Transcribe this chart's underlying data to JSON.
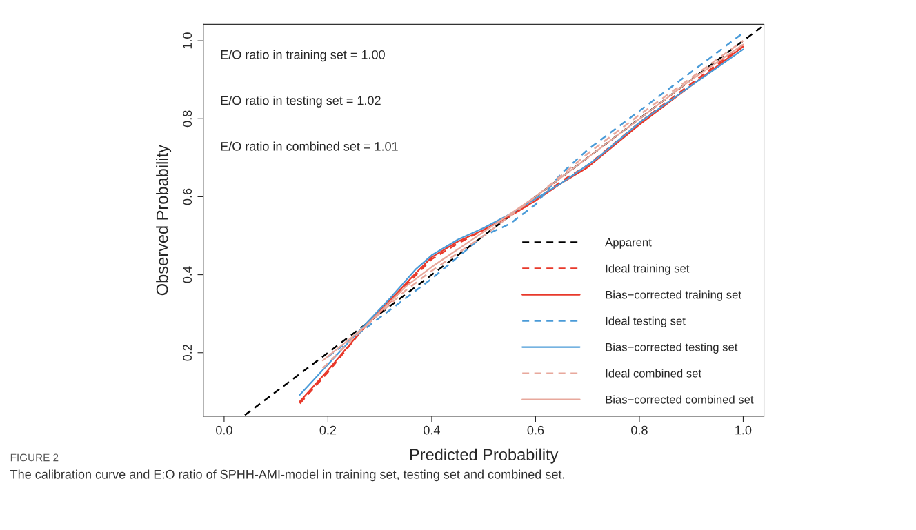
{
  "chart_data": {
    "type": "line",
    "xlabel": "Predicted Probability",
    "ylabel": "Observed Probability",
    "xlim": [
      -0.04,
      1.04
    ],
    "ylim": [
      0.037,
      1.042
    ],
    "xticks": [
      {
        "value": 0,
        "label": "0.0"
      },
      0.2,
      0.4,
      0.6,
      0.8,
      {
        "value": 1,
        "label": "1.0"
      }
    ],
    "yticks": [
      0.2,
      0.4,
      0.6,
      0.8,
      {
        "value": 1,
        "label": "1.0"
      }
    ],
    "grid": false,
    "legend": "bottom right",
    "annotations": [
      "E/O ratio in training set = 1.00",
      "E/O ratio in testing set = 1.02",
      "E/O ratio in combined set = 1.01",
      "FIGURE 2",
      "The calibration curve and E:O ratio of SPHH-AMI-model in training set, testing set and combined set."
    ],
    "series": [
      {
        "name": "Apparent",
        "color": "#000000",
        "line_style": "dashed",
        "x": [
          0.04,
          0.5,
          1.04
        ],
        "values": [
          0.04,
          0.5,
          1.04
        ]
      },
      {
        "name": "Ideal training set",
        "color": "#e8392b",
        "line_style": "dashed",
        "x": [
          0.146,
          0.2,
          0.27,
          0.32,
          0.37,
          0.4,
          0.45,
          0.5,
          0.55,
          0.6,
          0.65,
          0.7,
          0.8,
          0.9,
          1.0
        ],
        "values": [
          0.07,
          0.15,
          0.265,
          0.33,
          0.4,
          0.44,
          0.48,
          0.515,
          0.55,
          0.59,
          0.64,
          0.68,
          0.79,
          0.89,
          0.99
        ]
      },
      {
        "name": "Bias−corrected training set",
        "color": "#e8392b",
        "line_style": "solid",
        "x": [
          0.146,
          0.2,
          0.27,
          0.32,
          0.37,
          0.4,
          0.45,
          0.5,
          0.55,
          0.6,
          0.65,
          0.7,
          0.8,
          0.9,
          1.0
        ],
        "values": [
          0.075,
          0.155,
          0.265,
          0.335,
          0.405,
          0.445,
          0.485,
          0.515,
          0.55,
          0.59,
          0.635,
          0.675,
          0.785,
          0.885,
          0.985
        ]
      },
      {
        "name": "Ideal testing set",
        "color": "#4a9bd8",
        "line_style": "dashed",
        "x": [
          0.2,
          0.3,
          0.4,
          0.5,
          0.55,
          0.6,
          0.65,
          0.7,
          0.8,
          0.9,
          1.0
        ],
        "values": [
          0.19,
          0.29,
          0.39,
          0.5,
          0.53,
          0.58,
          0.66,
          0.72,
          0.82,
          0.92,
          1.02
        ]
      },
      {
        "name": "Bias−corrected testing set",
        "color": "#4a9bd8",
        "line_style": "solid",
        "x": [
          0.146,
          0.2,
          0.27,
          0.32,
          0.37,
          0.4,
          0.45,
          0.5,
          0.55,
          0.6,
          0.65,
          0.72,
          0.8,
          0.9,
          1.0
        ],
        "values": [
          0.092,
          0.17,
          0.27,
          0.34,
          0.415,
          0.45,
          0.49,
          0.52,
          0.555,
          0.595,
          0.635,
          0.7,
          0.79,
          0.885,
          0.978
        ]
      },
      {
        "name": "Ideal combined set",
        "color": "#e8a89c",
        "line_style": "dashed",
        "x": [
          0.19,
          0.27,
          0.35,
          0.4,
          0.5,
          0.6,
          0.7,
          0.8,
          0.9,
          1.0
        ],
        "values": [
          0.16,
          0.265,
          0.36,
          0.41,
          0.5,
          0.6,
          0.71,
          0.81,
          0.905,
          1.0
        ]
      },
      {
        "name": "Bias−corrected combined set",
        "color": "#e8a89c",
        "line_style": "solid",
        "x": [
          0.19,
          0.27,
          0.35,
          0.4,
          0.5,
          0.6,
          0.7,
          0.8,
          0.9,
          1.0
        ],
        "values": [
          0.18,
          0.265,
          0.37,
          0.42,
          0.51,
          0.6,
          0.7,
          0.8,
          0.9,
          0.99
        ]
      }
    ]
  }
}
